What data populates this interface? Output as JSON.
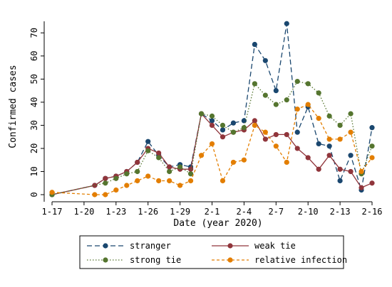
{
  "chart_data": {
    "type": "line",
    "xlabel": "Date (year 2020)",
    "ylabel": "Confirmed cases",
    "xlim": [
      0,
      30
    ],
    "ylim": [
      0,
      75
    ],
    "x_tick_values": [
      0,
      3,
      6,
      9,
      12,
      15,
      18,
      21,
      24,
      27,
      30
    ],
    "x_tick_labels": [
      "1-17",
      "1-20",
      "1-23",
      "1-26",
      "1-29",
      "2-1",
      "2-4",
      "2-7",
      "2-10",
      "2-13",
      "2-16"
    ],
    "y_ticks": [
      0,
      10,
      20,
      30,
      40,
      50,
      60,
      70
    ],
    "grid": false,
    "legend_position": "bottom",
    "series": [
      {
        "name": "stranger",
        "color": "#1a476f",
        "dash": "7,4",
        "x": [
          0,
          4,
          5,
          6,
          7,
          8,
          9,
          10,
          11,
          12,
          13,
          14,
          15,
          16,
          17,
          18,
          19,
          20,
          21,
          22,
          23,
          24,
          25,
          26,
          27,
          28,
          29,
          30
        ],
        "y": [
          0,
          4,
          7,
          8,
          10,
          14,
          23,
          17,
          12,
          13,
          12,
          35,
          32,
          28,
          31,
          32,
          65,
          58,
          45,
          74,
          27,
          38,
          22,
          21,
          6,
          17,
          2,
          29
        ]
      },
      {
        "name": "weak tie",
        "color": "#90353b",
        "dash": "",
        "x": [
          0,
          4,
          5,
          6,
          7,
          8,
          9,
          10,
          11,
          12,
          13,
          14,
          15,
          16,
          17,
          18,
          19,
          20,
          21,
          22,
          23,
          24,
          25,
          26,
          27,
          28,
          29,
          30
        ],
        "y": [
          0,
          4,
          7,
          8,
          10,
          14,
          20,
          18,
          12,
          11,
          11,
          35,
          30,
          25,
          27,
          28,
          32,
          24,
          26,
          26,
          20,
          16,
          11,
          17,
          11,
          10,
          3,
          5
        ]
      },
      {
        "name": "strong tie",
        "color": "#55752f",
        "dash": "1.5,2.5",
        "x": [
          0,
          5,
          6,
          7,
          8,
          9,
          10,
          11,
          12,
          13,
          14,
          15,
          16,
          17,
          18,
          19,
          20,
          21,
          22,
          23,
          24,
          25,
          26,
          27,
          28,
          29,
          30
        ],
        "y": [
          0,
          5,
          7,
          9,
          10,
          19,
          16,
          10,
          12,
          9,
          35,
          34,
          30,
          27,
          29,
          48,
          43,
          39,
          41,
          49,
          48,
          44,
          34,
          30,
          35,
          9,
          21
        ]
      },
      {
        "name": "relative infection",
        "color": "#e37e00",
        "dash": "4,3",
        "x": [
          0,
          4,
          5,
          6,
          7,
          8,
          9,
          10,
          11,
          12,
          13,
          14,
          15,
          16,
          17,
          18,
          19,
          20,
          21,
          22,
          23,
          24,
          25,
          26,
          27,
          28,
          29,
          30
        ],
        "y": [
          1,
          0,
          0,
          2,
          4,
          6,
          8,
          6,
          6,
          4,
          6,
          17,
          22,
          6,
          14,
          15,
          30,
          27,
          21,
          14,
          37,
          39,
          33,
          24,
          24,
          27,
          10,
          16
        ]
      }
    ]
  }
}
